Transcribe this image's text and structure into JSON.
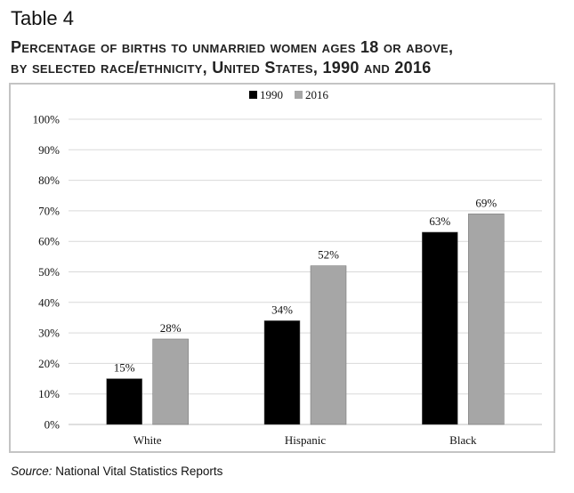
{
  "header": {
    "table_label": "Table 4",
    "title_line1": "Percentage of births to unmarried women ages 18 or above,",
    "title_line2": "by selected race/ethnicity, United States, 1990 and 2016"
  },
  "footer": {
    "source_label": "Source:",
    "source_text": "National Vital Statistics Reports"
  },
  "chart_data": {
    "type": "bar",
    "categories": [
      "White",
      "Hispanic",
      "Black"
    ],
    "series": [
      {
        "name": "1990",
        "values": [
          15,
          34,
          63
        ],
        "color": "#000000"
      },
      {
        "name": "2016",
        "values": [
          28,
          52,
          69
        ],
        "color": "#a6a6a6"
      }
    ],
    "ylim": [
      0,
      100
    ],
    "yticks": [
      "0%",
      "10%",
      "20%",
      "30%",
      "40%",
      "50%",
      "60%",
      "70%",
      "80%",
      "90%",
      "100%"
    ],
    "value_suffix": "%",
    "legend_position": "top-center",
    "grid": true,
    "gridline_color": "#d9d9d9"
  }
}
